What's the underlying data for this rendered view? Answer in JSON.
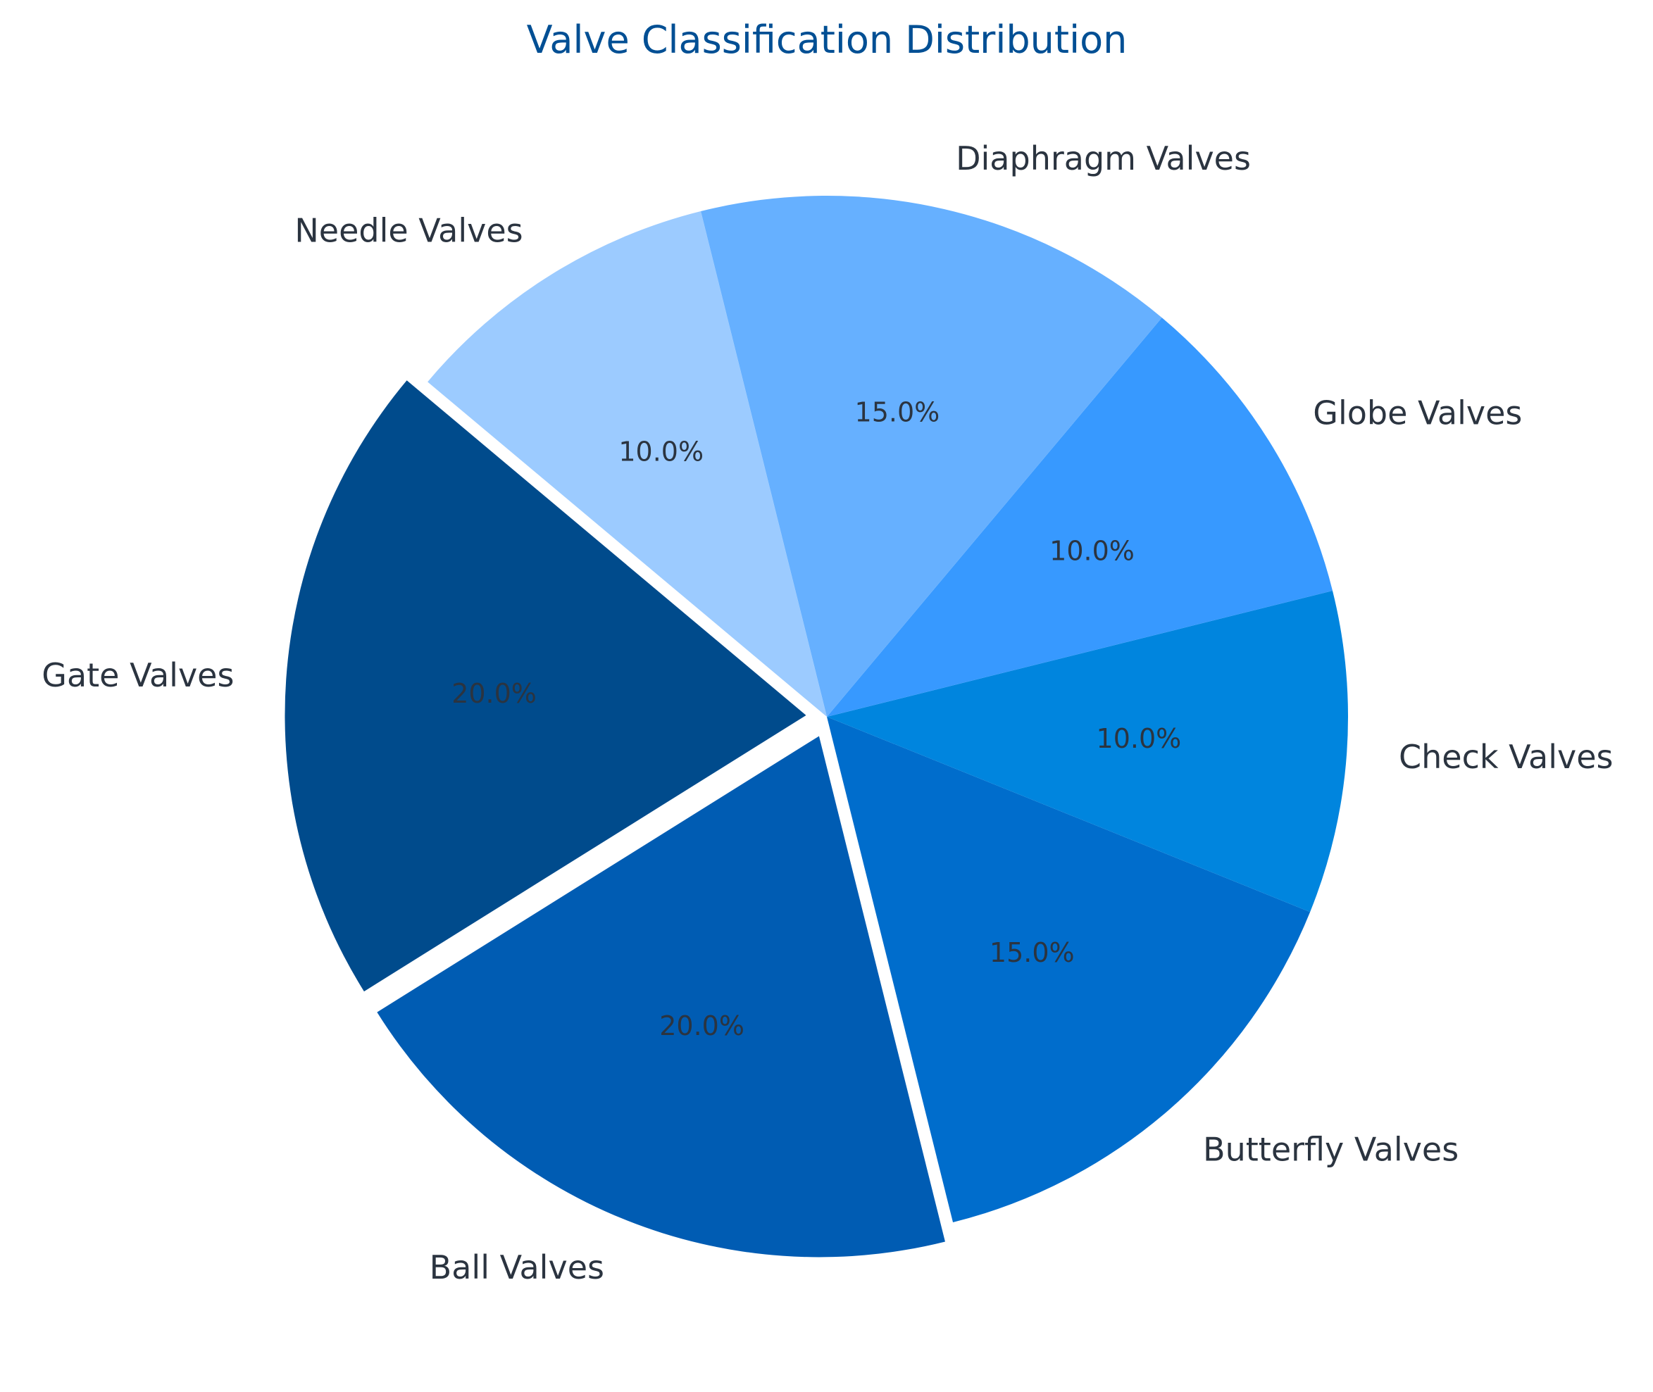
{
  "chart_data": {
    "type": "pie",
    "title": "Valve Classification Distribution",
    "start_angle_deg": 140,
    "direction": "counterclockwise",
    "slices": [
      {
        "label": "Gate Valves",
        "value": 20,
        "pct_label": "20.0%",
        "color": "#004b8c",
        "exploded": true
      },
      {
        "label": "Ball Valves",
        "value": 20,
        "pct_label": "20.0%",
        "color": "#005cb3",
        "exploded": true
      },
      {
        "label": "Butterfly Valves",
        "value": 15,
        "pct_label": "15.0%",
        "color": "#006dcc",
        "exploded": false
      },
      {
        "label": "Check Valves",
        "value": 10,
        "pct_label": "10.0%",
        "color": "#0085de",
        "exploded": false
      },
      {
        "label": "Globe Valves",
        "value": 10,
        "pct_label": "10.0%",
        "color": "#3799ff",
        "exploded": false
      },
      {
        "label": "Diaphragm Valves",
        "value": 15,
        "pct_label": "15.0%",
        "color": "#66b0ff",
        "exploded": false
      },
      {
        "label": "Needle Valves",
        "value": 10,
        "pct_label": "10.0%",
        "color": "#9ccbff",
        "exploded": false
      }
    ]
  }
}
